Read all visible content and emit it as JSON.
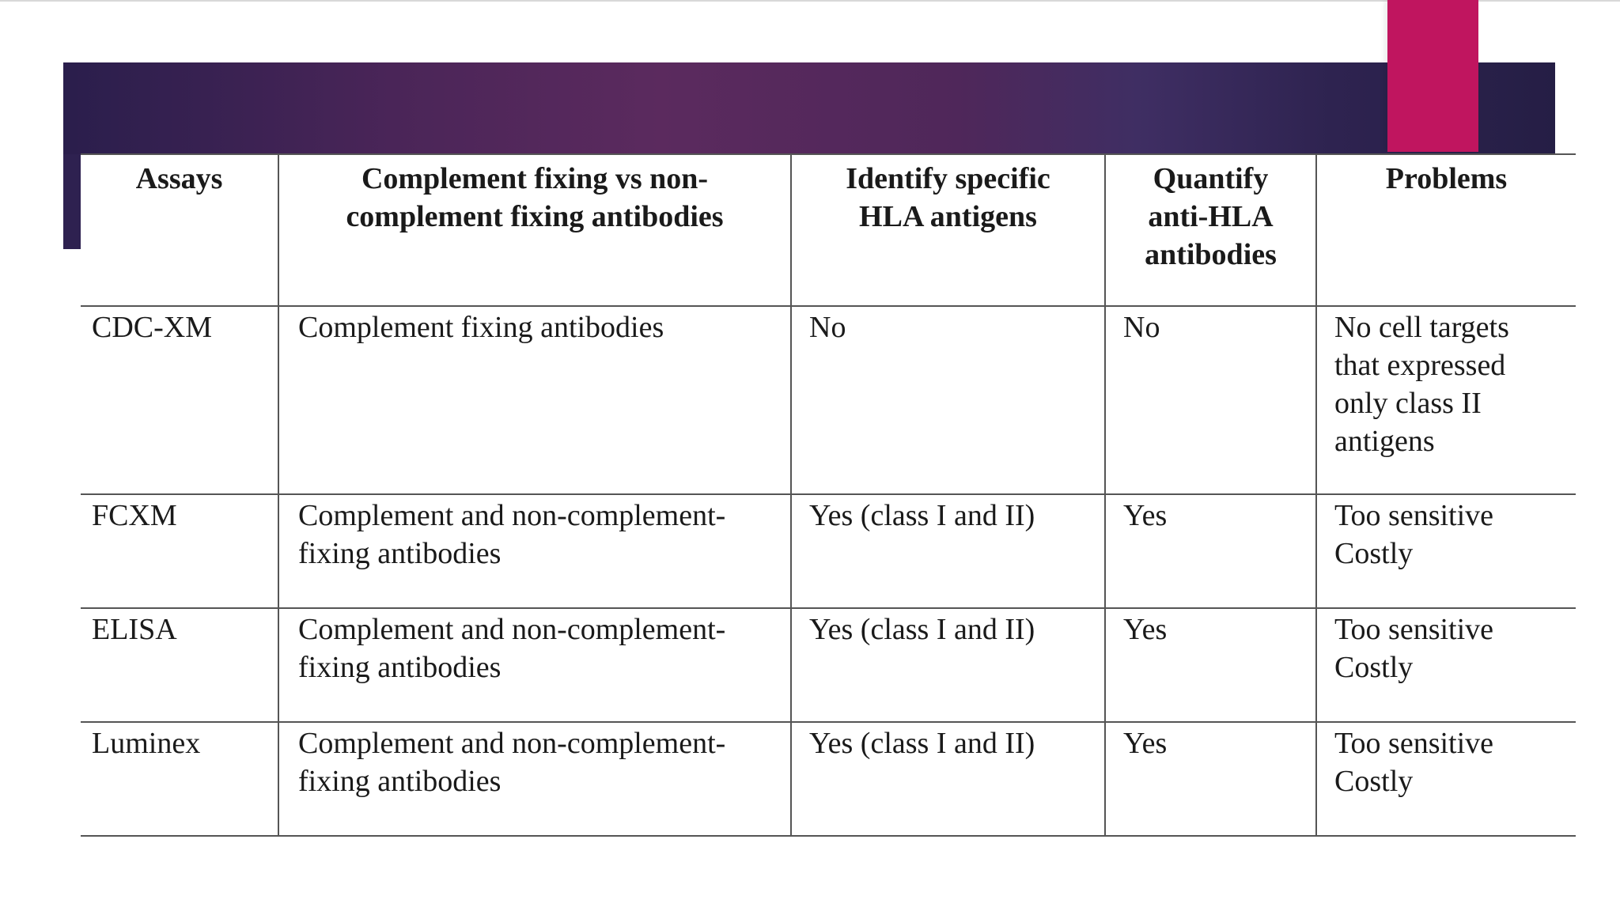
{
  "table": {
    "headers": [
      [
        "Assays"
      ],
      [
        "Complement fixing vs non-",
        "complement fixing antibodies"
      ],
      [
        "Identify specific",
        "HLA antigens"
      ],
      [
        "Quantify",
        "anti-HLA",
        "antibodies"
      ],
      [
        "Problems"
      ]
    ],
    "rows": [
      {
        "assay": "CDC-XM",
        "complement": [
          "Complement fixing antibodies"
        ],
        "identify": "No",
        "quantify": "No",
        "problems": [
          "No cell targets",
          "that expressed",
          "only class II",
          "antigens"
        ]
      },
      {
        "assay": "FCXM",
        "complement": [
          "Complement and non-complement-",
          "fixing antibodies"
        ],
        "identify": "Yes (class I and II)",
        "quantify": "Yes",
        "problems": [
          "Too sensitive",
          "Costly"
        ]
      },
      {
        "assay": "ELISA",
        "complement": [
          "Complement and non-complement-",
          "fixing antibodies"
        ],
        "identify": "Yes (class I and II)",
        "quantify": "Yes",
        "problems": [
          "Too sensitive",
          "Costly"
        ]
      },
      {
        "assay": "Luminex",
        "complement": [
          "Complement and non-complement-",
          "fixing antibodies"
        ],
        "identify": "Yes (class I and II)",
        "quantify": "Yes",
        "problems": [
          "Too sensitive",
          "Costly"
        ]
      }
    ]
  },
  "colors": {
    "banner": "#4a2558",
    "accent": "#c0155f"
  }
}
